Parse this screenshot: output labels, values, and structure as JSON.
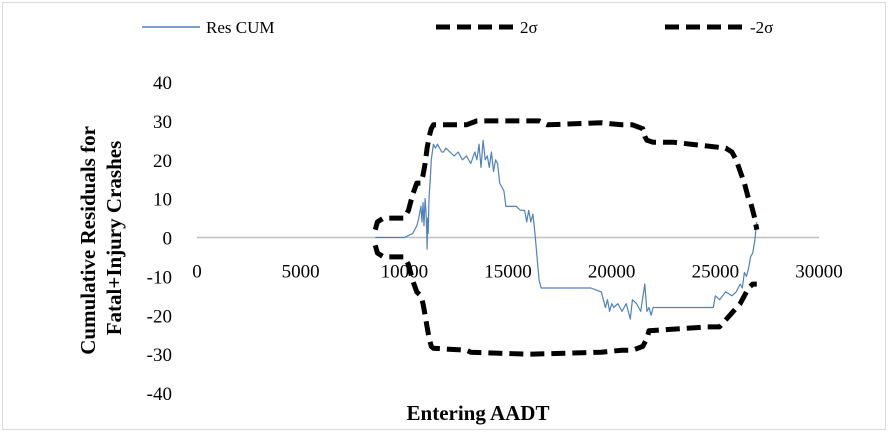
{
  "chart_data": {
    "type": "line",
    "title": "",
    "xlabel": "Entering AADT",
    "ylabel": [
      "Cumulative Residuals for",
      "Fatal+Injury Crashes"
    ],
    "xlim": [
      0,
      30000
    ],
    "ylim": [
      -40,
      40
    ],
    "x_ticks": [
      0,
      5000,
      10000,
      15000,
      20000,
      25000,
      30000
    ],
    "y_ticks": [
      40,
      30,
      20,
      10,
      0,
      -10,
      -20,
      -30,
      -40
    ],
    "grid": false,
    "legend": "top",
    "colors": {
      "res": "#4f81bd",
      "sigma": "#000000"
    },
    "series": [
      {
        "name": "Res CUM",
        "style": "solid",
        "x": [
          8600,
          10000,
          10400,
          10600,
          10700,
          10800,
          10850,
          10900,
          10950,
          11000,
          11050,
          11080,
          11100,
          11120,
          11150,
          11180,
          11200,
          11250,
          11300,
          11400,
          11500,
          11600,
          11700,
          11800,
          11900,
          12000,
          12200,
          12400,
          12600,
          12800,
          13000,
          13200,
          13400,
          13500,
          13600,
          13700,
          13800,
          13900,
          14000,
          14100,
          14200,
          14300,
          14400,
          14500,
          14600,
          14700,
          14800,
          14900,
          15000,
          15100,
          15200,
          15400,
          15600,
          15800,
          15900,
          16000,
          16100,
          16200,
          16300,
          16400,
          16500,
          16600,
          17000,
          18000,
          19000,
          19500,
          19700,
          19800,
          19900,
          20000,
          20100,
          20300,
          20500,
          20700,
          20900,
          21000,
          21200,
          21400,
          21600,
          21700,
          21800,
          21900,
          22000,
          22500,
          23000,
          24000,
          24900,
          25000,
          25200,
          25500,
          25800,
          26000,
          26200,
          26300,
          26400,
          26500,
          26600,
          26700,
          26800,
          26900,
          27000
        ],
        "y": [
          0,
          0,
          1,
          3,
          5,
          8,
          4,
          9,
          3,
          10,
          6,
          2,
          -3,
          5,
          1,
          8,
          11,
          15,
          20,
          24,
          23,
          24,
          23,
          22,
          22,
          23,
          22,
          21,
          22,
          20,
          21,
          19,
          22,
          20,
          24,
          18,
          25,
          20,
          21,
          18,
          22,
          17,
          20,
          19,
          14,
          13,
          12,
          8,
          8,
          8,
          8,
          8,
          7,
          7,
          4,
          7,
          4,
          6,
          1,
          -5,
          -11,
          -13,
          -13,
          -13,
          -13,
          -14,
          -18,
          -16,
          -19,
          -17,
          -18,
          -17,
          -19,
          -17,
          -21,
          -16,
          -17,
          -19,
          -12,
          -19,
          -18,
          -20,
          -18,
          -18,
          -18,
          -18,
          -18,
          -15,
          -16,
          -14,
          -15,
          -14,
          -12,
          -13,
          -9,
          -10,
          -8,
          -5,
          -4,
          -1,
          4
        ]
      },
      {
        "name": "2σ",
        "style": "dashed",
        "x": [
          8600,
          8700,
          9000,
          9500,
          10000,
          10200,
          10400,
          10600,
          10800,
          10900,
          11000,
          11100,
          11200,
          11300,
          11400,
          11600,
          12000,
          12500,
          13000,
          13500,
          14000,
          14500,
          15000,
          15500,
          16000,
          16500,
          16900,
          19500,
          20500,
          21000,
          21500,
          21600,
          21700,
          22000,
          23000,
          25500,
          25800,
          26000,
          26200,
          26400,
          26500,
          26600,
          26700,
          26800,
          26900,
          27000
        ],
        "y": [
          2,
          4,
          5,
          5,
          5,
          7,
          11,
          14,
          14,
          16,
          19,
          23,
          26,
          28,
          29,
          29,
          29,
          29,
          29,
          30,
          30,
          30,
          30,
          30,
          30,
          30,
          29,
          29.5,
          29,
          29,
          28,
          26,
          25,
          24.5,
          24.5,
          23,
          22,
          20,
          17,
          14,
          12,
          10,
          9,
          7,
          5,
          2
        ]
      },
      {
        "name": "-2σ",
        "style": "dashed",
        "x": [
          8600,
          8700,
          9000,
          9500,
          10000,
          10200,
          10400,
          10600,
          10800,
          10900,
          11000,
          11100,
          11200,
          11300,
          11400,
          13000,
          13200,
          15800,
          16200,
          19500,
          20500,
          21000,
          21500,
          21600,
          21700,
          21800,
          24600,
          25200,
          26200,
          26400,
          26600,
          26800,
          27000
        ],
        "y": [
          -2,
          -4,
          -5,
          -5,
          -5,
          -7,
          -11,
          -14,
          -15,
          -17,
          -20,
          -23,
          -26,
          -28,
          -28.5,
          -29,
          -29.5,
          -30,
          -30,
          -29.5,
          -29,
          -29,
          -28,
          -27,
          -26,
          -24,
          -23,
          -23,
          -17,
          -15,
          -13,
          -12,
          -12
        ]
      }
    ]
  }
}
